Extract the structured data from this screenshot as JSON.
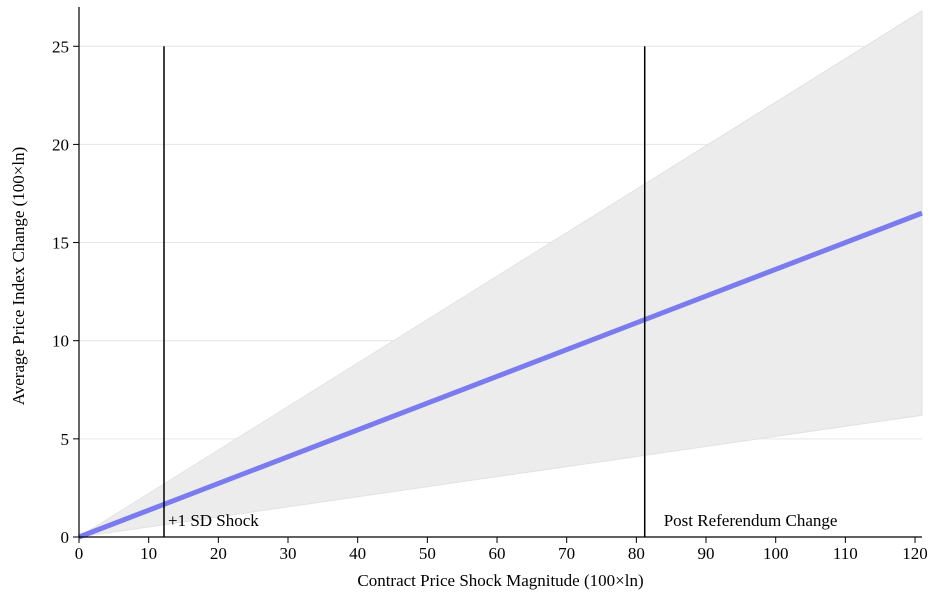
{
  "chart_data": {
    "type": "line",
    "xlabel": "Contract Price Shock Magnitude (100×ln)",
    "ylabel": "Average Price Index Change (100×ln)",
    "xlim": [
      0,
      121
    ],
    "ylim": [
      0,
      27
    ],
    "xticks": [
      0,
      10,
      20,
      30,
      40,
      50,
      60,
      70,
      80,
      90,
      100,
      110,
      120
    ],
    "yticks": [
      0,
      5,
      10,
      15,
      20,
      25
    ],
    "grid": "horizontal",
    "series": [
      {
        "x": [
          0,
          121
        ],
        "y": [
          0,
          16.5
        ],
        "color": "#7b7bf0"
      }
    ],
    "confidence_band": {
      "x": [
        0,
        121
      ],
      "lower": [
        0,
        6.2
      ],
      "upper": [
        0,
        26.8
      ],
      "color": "#ececec"
    },
    "vlines": [
      {
        "x": 12.2,
        "ymax": 25,
        "label": "+1 SD Shock"
      },
      {
        "x": 81.2,
        "ymax": 25,
        "label": "Post Referendum Change"
      }
    ]
  }
}
